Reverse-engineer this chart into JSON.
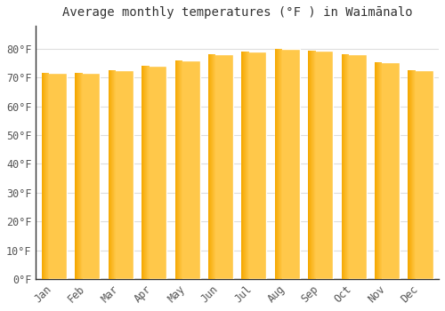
{
  "title": "Average monthly temperatures (°F ) in Waimānalo",
  "months": [
    "Jan",
    "Feb",
    "Mar",
    "Apr",
    "May",
    "Jun",
    "Jul",
    "Aug",
    "Sep",
    "Oct",
    "Nov",
    "Dec"
  ],
  "values": [
    71.5,
    71.5,
    72.5,
    74.0,
    76.0,
    78.0,
    79.0,
    80.0,
    79.5,
    78.0,
    75.5,
    72.5
  ],
  "bar_color_light": "#FFC84A",
  "bar_color_dark": "#F5A800",
  "background_color": "#FFFFFF",
  "grid_color": "#DDDDDD",
  "text_color": "#555555",
  "title_color": "#333333",
  "ylim": [
    0,
    88
  ],
  "yticks": [
    0,
    10,
    20,
    30,
    40,
    50,
    60,
    70,
    80
  ],
  "title_fontsize": 10,
  "tick_fontsize": 8.5,
  "bar_width": 0.75
}
